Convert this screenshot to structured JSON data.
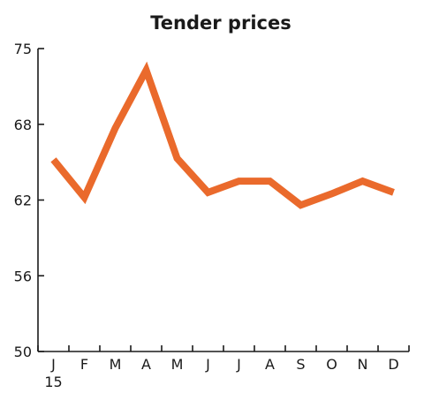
{
  "chart_data": {
    "type": "line",
    "title": "Tender prices",
    "xlabel": "",
    "ylabel": "",
    "categories": [
      "J",
      "F",
      "M",
      "A",
      "M",
      "J",
      "J",
      "A",
      "S",
      "O",
      "N",
      "D"
    ],
    "year_label": "15",
    "y_ticks": [
      50,
      56,
      62,
      68,
      75
    ],
    "ylim": [
      50,
      75
    ],
    "grid": false,
    "series": [
      {
        "color": "#ea6a2c",
        "values": [
          65.2,
          62.2,
          67.7,
          73.0,
          65.3,
          62.6,
          63.5,
          63.5,
          61.6,
          62.5,
          63.5,
          62.6
        ]
      }
    ]
  }
}
